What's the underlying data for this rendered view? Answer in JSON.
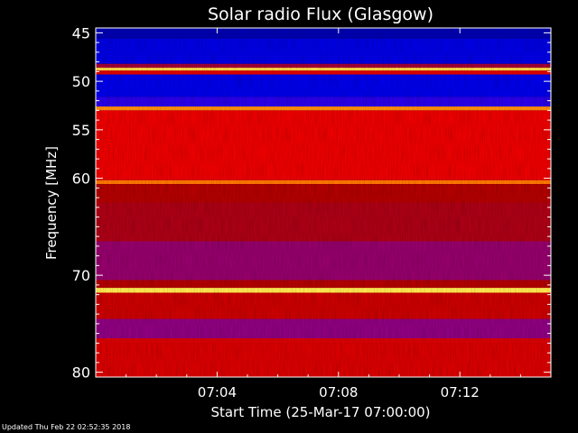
{
  "chart_data": {
    "type": "heatmap",
    "title": "Solar radio Flux (Glasgow)",
    "xlabel": "Start Time (25-Mar-17 07:00:00)",
    "ylabel": "Frequency [MHz]",
    "x_tick_labels": [
      "07:04",
      "07:08",
      "07:12"
    ],
    "x_ticks_minutes": [
      4,
      8,
      12
    ],
    "xlim_minutes": [
      0,
      15
    ],
    "y_tick_labels": [
      "45",
      "50",
      "55",
      "60",
      "70",
      "80"
    ],
    "y_ticks_mhz": [
      45,
      50,
      55,
      60,
      70,
      80
    ],
    "ylim_mhz": [
      44.5,
      80.5
    ],
    "y_axis_orientation": "increasing downward",
    "colormap": [
      "#00008b",
      "#0000ff",
      "#8000b0",
      "#b00000",
      "#ff0000",
      "#ff8000",
      "#ffff60"
    ],
    "frequency_bands": [
      {
        "from_mhz": 44.5,
        "to_mhz": 45.6,
        "level": 0.05
      },
      {
        "from_mhz": 45.6,
        "to_mhz": 48.2,
        "level": 0.12
      },
      {
        "from_mhz": 48.2,
        "to_mhz": 48.6,
        "level": 0.45
      },
      {
        "from_mhz": 48.6,
        "to_mhz": 48.9,
        "level": 0.95
      },
      {
        "from_mhz": 48.9,
        "to_mhz": 49.3,
        "level": 0.6
      },
      {
        "from_mhz": 49.3,
        "to_mhz": 51.6,
        "level": 0.13
      },
      {
        "from_mhz": 51.6,
        "to_mhz": 52.6,
        "level": 0.22
      },
      {
        "from_mhz": 52.6,
        "to_mhz": 53.0,
        "level": 0.85
      },
      {
        "from_mhz": 53.0,
        "to_mhz": 60.2,
        "level": 0.62
      },
      {
        "from_mhz": 60.2,
        "to_mhz": 60.6,
        "level": 0.82
      },
      {
        "from_mhz": 60.6,
        "to_mhz": 62.5,
        "level": 0.5
      },
      {
        "from_mhz": 62.5,
        "to_mhz": 66.5,
        "level": 0.48
      },
      {
        "from_mhz": 66.5,
        "to_mhz": 70.5,
        "level": 0.4
      },
      {
        "from_mhz": 70.5,
        "to_mhz": 71.3,
        "level": 0.5
      },
      {
        "from_mhz": 71.3,
        "to_mhz": 71.8,
        "level": 0.97
      },
      {
        "from_mhz": 71.8,
        "to_mhz": 74.5,
        "level": 0.55
      },
      {
        "from_mhz": 74.5,
        "to_mhz": 76.5,
        "level": 0.38
      },
      {
        "from_mhz": 76.5,
        "to_mhz": 80.5,
        "level": 0.58
      }
    ],
    "grid": false,
    "legend": false
  },
  "footer": "Updated Thu Feb 22 02:52:35 2018"
}
